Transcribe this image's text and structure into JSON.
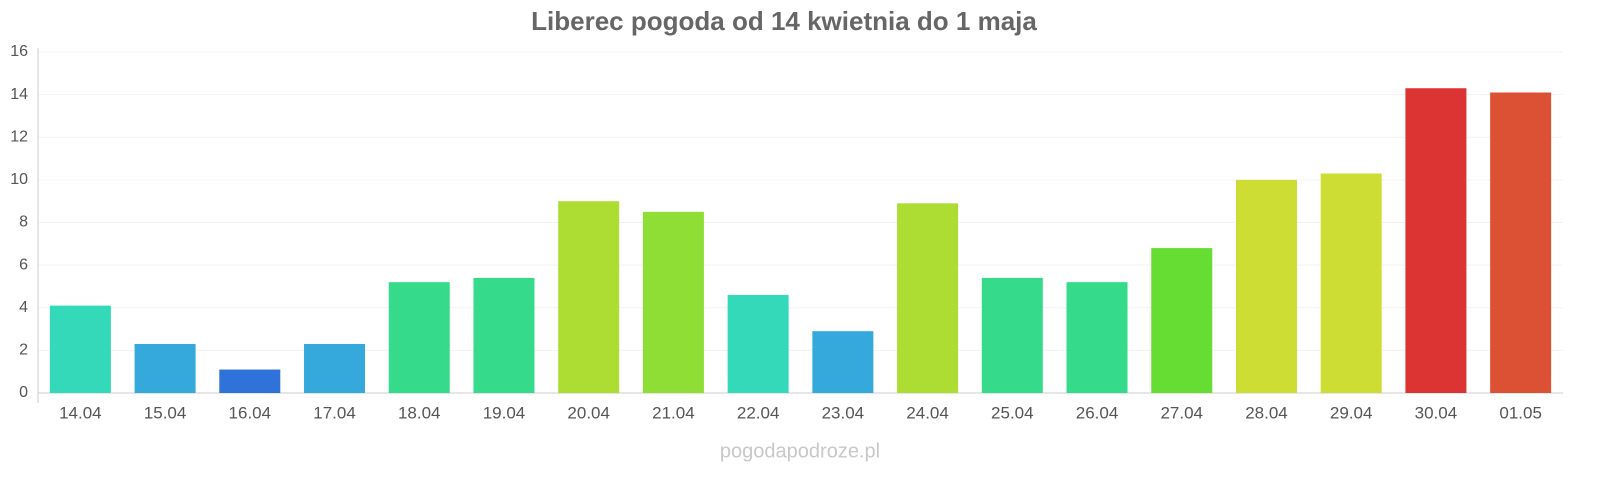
{
  "chart_data": {
    "type": "bar",
    "title": "Liberec pogoda od 14 kwietnia do 1 maja",
    "categories": [
      "14.04",
      "15.04",
      "16.04",
      "17.04",
      "18.04",
      "19.04",
      "20.04",
      "21.04",
      "22.04",
      "23.04",
      "24.04",
      "25.04",
      "26.04",
      "27.04",
      "28.04",
      "29.04",
      "30.04",
      "01.05"
    ],
    "values": [
      4.1,
      2.3,
      1.1,
      2.3,
      5.2,
      5.4,
      9.0,
      8.5,
      4.6,
      2.9,
      8.9,
      5.4,
      5.2,
      6.8,
      10.0,
      10.3,
      14.3,
      14.1
    ],
    "colors": [
      "#33d9b8",
      "#35a8dc",
      "#2f72da",
      "#35a8dc",
      "#35db8a",
      "#35db8a",
      "#addd33",
      "#8ede35",
      "#33d9b8",
      "#35a8dc",
      "#addd33",
      "#35db8a",
      "#35db8a",
      "#66dd33",
      "#cddd33",
      "#cddd33",
      "#dc3333",
      "#dc5033"
    ],
    "ylim": [
      0,
      16
    ],
    "yticks": [
      0,
      2,
      4,
      6,
      8,
      10,
      12,
      14,
      16
    ],
    "grid": true,
    "watermark": "pogodapodroze.pl"
  }
}
